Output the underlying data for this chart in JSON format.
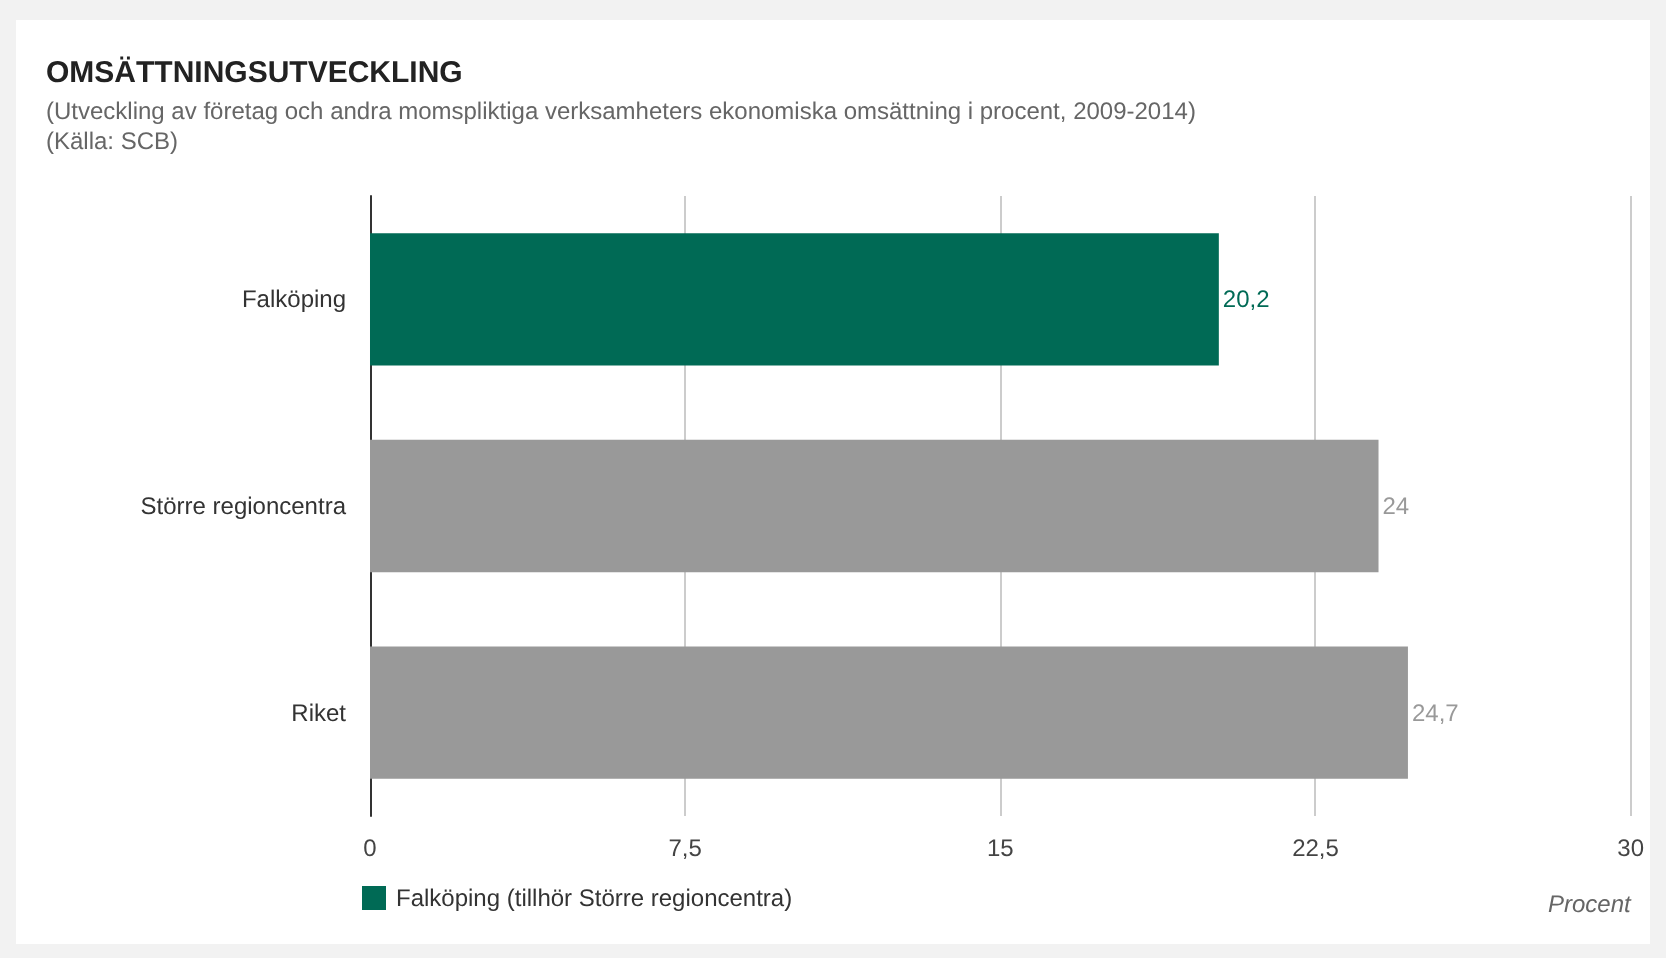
{
  "chart_data": {
    "type": "bar",
    "orientation": "horizontal",
    "title": "OMSÄTTNINGSUTVECKLING",
    "subtitle": "(Utveckling av företag och andra momspliktiga verksamheters ekonomiska omsättning i procent, 2009-2014)",
    "annotations": [
      "(Källa: SCB)"
    ],
    "xlabel": "Procent",
    "categories": [
      "Falköping",
      "Större regioncentra",
      "Riket"
    ],
    "series": [
      {
        "name": "Falköping (tillhör Större regioncentra)",
        "color": "#006a55",
        "values": [
          20.2,
          null,
          null
        ],
        "value_labels": [
          "20,2",
          null,
          null
        ]
      },
      {
        "color": "#999999",
        "values": [
          null,
          24,
          24.7
        ],
        "value_labels": [
          null,
          "24",
          "24,7"
        ]
      }
    ],
    "xlim": [
      0,
      30
    ],
    "xticks": [
      0,
      {
        "value": 7.5,
        "label": "7,5"
      },
      15,
      {
        "value": 22.5,
        "label": "22,5"
      },
      30
    ],
    "grid": "x",
    "legend": "bottom left"
  }
}
